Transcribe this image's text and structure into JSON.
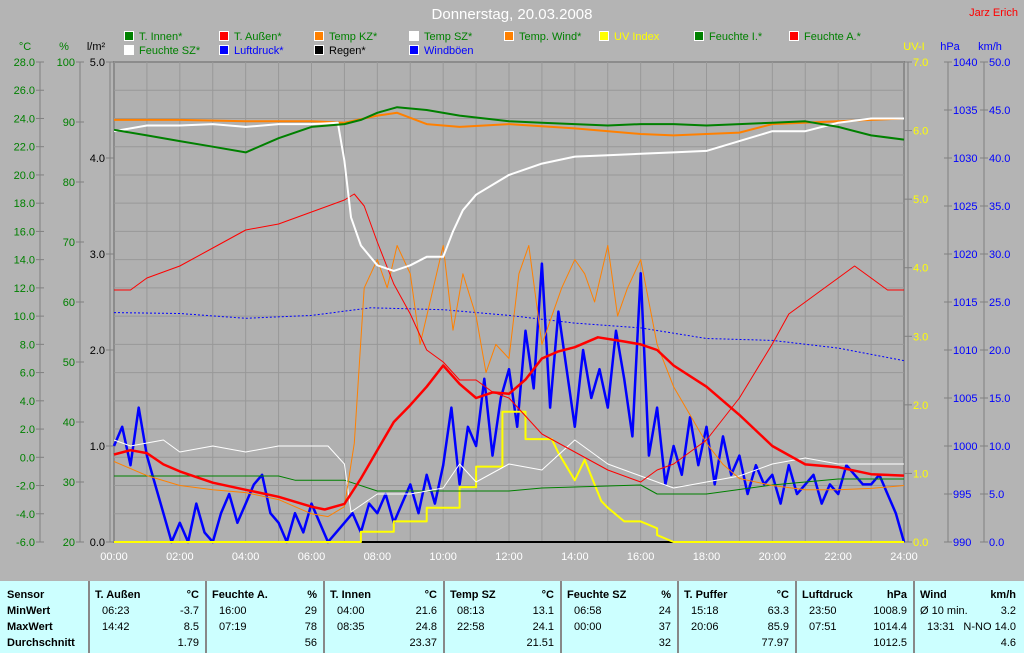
{
  "title": "Donnerstag, 20.03.2008",
  "author": "Jarz Erich",
  "legend": [
    {
      "label": "T. Innen*",
      "swatch": "#008000",
      "text": "#008000"
    },
    {
      "label": "T. Außen*",
      "swatch": "#ff0000",
      "text": "#008000"
    },
    {
      "label": "Temp KZ*",
      "swatch": "#ff8000",
      "text": "#008000"
    },
    {
      "label": "Temp SZ*",
      "swatch": "#ffffff",
      "text": "#008000"
    },
    {
      "label": "Temp. Wind*",
      "swatch": "#ff8000",
      "text": "#008000"
    },
    {
      "label": "UV Index",
      "swatch": "#ffff00",
      "text": "#ffff00"
    },
    {
      "label": "Feuchte I.*",
      "swatch": "#008000",
      "text": "#008000"
    },
    {
      "label": "Feuchte A.*",
      "swatch": "#ff0000",
      "text": "#008000"
    },
    {
      "label": "Feuchte SZ*",
      "swatch": "#ffffff",
      "text": "#008000"
    },
    {
      "label": "Luftdruck*",
      "swatch": "#0000ff",
      "text": "#0000ff"
    },
    {
      "label": "Regen*",
      "swatch": "#000000",
      "text": "#000000"
    },
    {
      "label": "Windböen",
      "swatch": "#0000ff",
      "text": "#0000ff"
    }
  ],
  "chart_data": {
    "type": "line",
    "title": "Donnerstag, 20.03.2008",
    "xlabel": "",
    "x_range": [
      0,
      24
    ],
    "x_ticks": [
      "00:00",
      "02:00",
      "04:00",
      "06:00",
      "08:00",
      "10:00",
      "12:00",
      "14:00",
      "16:00",
      "18:00",
      "20:00",
      "22:00",
      "24:00"
    ],
    "grid": true,
    "axes": {
      "temp": {
        "unit": "°C",
        "range": [
          -6,
          28
        ],
        "step": 2,
        "side": "left",
        "color": "#008000",
        "decimals": 1
      },
      "hum": {
        "unit": "%",
        "range": [
          20,
          100
        ],
        "step": 10,
        "side": "left",
        "color": "#008000",
        "decimals": 0
      },
      "rain": {
        "unit": "l/m²",
        "range": [
          0,
          5
        ],
        "step": 1,
        "side": "left",
        "color": "#000000",
        "decimals": 1
      },
      "uv": {
        "unit": "UV-I",
        "range": [
          0,
          7
        ],
        "step": 1,
        "side": "right",
        "color": "#ffff00",
        "decimals": 1
      },
      "press": {
        "unit": "hPa",
        "range": [
          990,
          1040
        ],
        "step": 5,
        "side": "right",
        "color": "#0000ff",
        "decimals": 0
      },
      "wind": {
        "unit": "km/h",
        "range": [
          0,
          50
        ],
        "step": 5,
        "side": "right",
        "color": "#0000ff",
        "decimals": 1
      }
    },
    "series": [
      {
        "name": "Regen",
        "axis": "rain",
        "color": "#000000",
        "width": 2,
        "x": [
          0,
          24
        ],
        "y": [
          0,
          0
        ]
      },
      {
        "name": "Windböen",
        "axis": "wind",
        "color": "#0000ff",
        "width": 2.5,
        "step": 0.25,
        "y": [
          10,
          12,
          8,
          14,
          9,
          6,
          3,
          0,
          2,
          0,
          4,
          1,
          0,
          3,
          5,
          2,
          4,
          6,
          7,
          3,
          2,
          0,
          3,
          1,
          4,
          2,
          0,
          1,
          2,
          3,
          1,
          4,
          3,
          5,
          2,
          4,
          6,
          3,
          7,
          4,
          8,
          14,
          6,
          12,
          10,
          17,
          9,
          15,
          18,
          12,
          22,
          16,
          29,
          14,
          24,
          18,
          12,
          20,
          15,
          18,
          14,
          22,
          17,
          11,
          28,
          9,
          14,
          6,
          10,
          7,
          13,
          8,
          12,
          6,
          11,
          7,
          9,
          5,
          8,
          6,
          7,
          4,
          8,
          5,
          6,
          7,
          4,
          6,
          5,
          8,
          7,
          6,
          6,
          7,
          5,
          3,
          0
        ]
      },
      {
        "name": "UV Index",
        "axis": "uv",
        "color": "#ffff00",
        "width": 2,
        "x": [
          0,
          7.5,
          7.5,
          8.5,
          8.5,
          9.5,
          9.5,
          10.5,
          10.5,
          11,
          11,
          11.8,
          11.8,
          12.5,
          12.5,
          13.3,
          13.5,
          14,
          14.3,
          14.8,
          15,
          15.5,
          16,
          16.5,
          16.5,
          17,
          24
        ],
        "y": [
          0,
          0,
          0.15,
          0.15,
          0.3,
          0.3,
          0.5,
          0.5,
          0.8,
          0.8,
          1.1,
          1.1,
          1.9,
          1.9,
          1.5,
          1.5,
          1.3,
          0.9,
          1.2,
          0.6,
          0.5,
          0.3,
          0.3,
          0.2,
          0.1,
          0,
          0
        ]
      },
      {
        "name": "Feuchte I.",
        "axis": "hum",
        "color": "#008000",
        "width": 1,
        "x": [
          0,
          5,
          5.5,
          7,
          8,
          10,
          12,
          13,
          16,
          16.5,
          18,
          20,
          22,
          24
        ],
        "y": [
          31,
          31,
          30.3,
          30.3,
          28.5,
          28.5,
          28.5,
          29,
          29.5,
          28,
          28,
          29.5,
          30.5,
          30.5
        ]
      },
      {
        "name": "Feuchte SZ",
        "axis": "hum",
        "color": "#ffffff",
        "width": 1,
        "x": [
          0,
          0.5,
          1.5,
          2,
          3,
          4,
          5,
          6,
          6.5,
          7,
          7.2,
          8,
          9,
          10,
          10.5,
          11,
          12,
          13,
          14,
          15,
          16,
          17,
          18,
          19,
          20,
          21,
          22,
          23,
          24
        ],
        "y": [
          37,
          36,
          37,
          35,
          36,
          35,
          36,
          36,
          36,
          33,
          25,
          28,
          28,
          29,
          33,
          30,
          33,
          32,
          37,
          33,
          31,
          29,
          30,
          31,
          33,
          34,
          33,
          33,
          33
        ]
      },
      {
        "name": "Luftdruck",
        "axis": "press",
        "color": "#0000ff",
        "width": 1,
        "dash": "2,2",
        "x": [
          0,
          2,
          4,
          6,
          7.8,
          10,
          12,
          14,
          16,
          18,
          20,
          22,
          24
        ],
        "y": [
          1013.9,
          1013.8,
          1013.3,
          1013.6,
          1014.4,
          1014.2,
          1013.6,
          1012.8,
          1012.3,
          1011.2,
          1011.0,
          1010.2,
          1008.9
        ]
      },
      {
        "name": "Temp. Wind",
        "axis": "temp",
        "color": "#ff8000",
        "width": 1,
        "x": [
          0,
          1,
          2,
          3,
          4,
          5,
          6,
          6.5,
          7,
          7.3,
          7.6,
          8,
          8.3,
          8.6,
          9,
          9.3,
          9.6,
          10,
          10.3,
          10.6,
          11,
          11.3,
          11.6,
          12,
          12.3,
          12.6,
          13,
          13.3,
          13.6,
          14,
          14.3,
          14.6,
          15,
          15.3,
          15.6,
          16,
          16.5,
          17,
          17.5,
          18,
          18.5,
          19,
          20,
          21,
          22,
          23,
          24
        ],
        "y": [
          -0.3,
          -1.3,
          -2,
          -2.3,
          -2.5,
          -3,
          -4,
          -4.2,
          -3.5,
          1,
          12,
          14,
          12,
          15,
          13,
          8,
          11,
          15,
          9,
          13,
          10,
          6,
          8,
          7,
          13,
          15,
          8,
          10,
          12,
          14,
          13,
          11,
          15,
          10,
          12,
          14,
          8,
          5,
          3,
          1,
          -0.5,
          -1.5,
          -2,
          -2.3,
          -2.3,
          -2.2,
          -2
        ]
      },
      {
        "name": "Feuchte A.",
        "axis": "hum",
        "color": "#ff0000",
        "width": 1,
        "x": [
          0,
          0.5,
          1,
          2,
          3,
          4,
          5,
          6,
          6.5,
          7,
          7.3,
          7.6,
          8,
          8.5,
          9,
          9.5,
          10,
          10.5,
          11,
          11.5,
          12,
          13,
          14,
          15,
          16,
          16.5,
          17,
          18,
          19,
          20,
          20.5,
          21,
          21.5,
          22,
          22.5,
          23,
          23.5,
          24
        ],
        "y": [
          62,
          62,
          64,
          66,
          69,
          72,
          73,
          75,
          76,
          77,
          78,
          76,
          70,
          63,
          58,
          52,
          50,
          47,
          47,
          45,
          44,
          38,
          35,
          32,
          30,
          32,
          33,
          37,
          44,
          53,
          58,
          60,
          62,
          64,
          66,
          64,
          62,
          62
        ]
      },
      {
        "name": "Temp KZ",
        "axis": "temp",
        "color": "#ff8000",
        "width": 2,
        "x": [
          0,
          2,
          4,
          6,
          7,
          8,
          8.6,
          9.5,
          10.5,
          12,
          14,
          16,
          17,
          19,
          20,
          22,
          24
        ],
        "y": [
          23.9,
          23.9,
          23.8,
          23.8,
          23.7,
          24.2,
          24.4,
          23.6,
          23.4,
          23.6,
          23.3,
          22.9,
          22.8,
          23.0,
          23.6,
          23.8,
          24.0
        ]
      },
      {
        "name": "Temp SZ",
        "axis": "temp",
        "color": "#ffffff",
        "width": 2,
        "x": [
          0,
          0.5,
          1,
          2,
          3,
          4,
          5,
          6,
          6.8,
          7,
          7.2,
          7.5,
          8,
          8.5,
          9,
          9.5,
          10,
          10.3,
          10.6,
          11,
          12,
          13,
          14,
          15,
          16,
          17,
          18,
          19,
          20,
          21,
          22,
          23,
          24
        ],
        "y": [
          23.1,
          23.3,
          23.5,
          23.5,
          23.6,
          23.4,
          23.6,
          23.6,
          23.7,
          21,
          17,
          15,
          13.6,
          13.2,
          13.6,
          14.2,
          14.2,
          16,
          17.5,
          18.6,
          20,
          20.8,
          21.3,
          21.4,
          21.5,
          21.6,
          21.7,
          22.4,
          23.1,
          23.1,
          23.7,
          24.0,
          24.0
        ]
      },
      {
        "name": "T. Innen",
        "axis": "temp",
        "color": "#008000",
        "width": 2,
        "x": [
          0,
          1,
          2,
          3,
          4,
          5,
          6,
          7,
          7.5,
          8,
          8.6,
          9.5,
          10.5,
          12,
          13,
          14,
          15,
          16,
          17,
          18,
          19,
          20,
          21,
          22,
          23,
          24
        ],
        "y": [
          23.2,
          22.8,
          22.4,
          22,
          21.6,
          22.6,
          23.4,
          23.6,
          23.9,
          24.4,
          24.8,
          24.6,
          24.2,
          23.8,
          23.7,
          23.6,
          23.5,
          23.6,
          23.6,
          23.5,
          23.6,
          23.7,
          23.8,
          23.4,
          22.8,
          22.5
        ]
      },
      {
        "name": "T. Außen",
        "axis": "temp",
        "color": "#ff0000",
        "width": 2.5,
        "x": [
          0,
          0.5,
          1,
          1.5,
          2,
          3,
          4,
          5,
          6,
          6.4,
          7,
          7.5,
          8,
          8.5,
          9,
          9.5,
          10,
          10.5,
          11,
          11.5,
          12,
          12.5,
          13,
          13.5,
          14,
          14.7,
          15.5,
          16,
          16.5,
          17,
          18,
          19,
          20,
          21,
          22,
          23,
          24
        ],
        "y": [
          0.2,
          0.5,
          0.3,
          -0.5,
          -1,
          -1.8,
          -2.3,
          -2.8,
          -3.5,
          -3.7,
          -3.3,
          -1.5,
          0.5,
          2.5,
          3.7,
          5,
          6.5,
          5.2,
          4.2,
          4.6,
          4.5,
          5.5,
          7,
          7.5,
          7.8,
          8.5,
          8.2,
          8.0,
          7.6,
          6.5,
          5,
          3,
          0.8,
          -0.5,
          -0.7,
          -1.2,
          -1.3
        ]
      }
    ]
  },
  "table": {
    "headers": [
      {
        "name": "Sensor",
        "unit": ""
      },
      {
        "name": "T. Außen",
        "unit": "°C"
      },
      {
        "name": "Feuchte A.",
        "unit": "%"
      },
      {
        "name": "T. Innen",
        "unit": "°C"
      },
      {
        "name": "Temp SZ",
        "unit": "°C"
      },
      {
        "name": "Feuchte SZ",
        "unit": "%"
      },
      {
        "name": "T. Puffer",
        "unit": "°C"
      },
      {
        "name": "Luftdruck",
        "unit": "hPa"
      },
      {
        "name": "Wind",
        "unit": "km/h"
      }
    ],
    "rows": [
      {
        "label": "MinWert",
        "cells": [
          [
            "06:23",
            "-3.7"
          ],
          [
            "16:00",
            "29"
          ],
          [
            "04:00",
            "21.6"
          ],
          [
            "08:13",
            "13.1"
          ],
          [
            "06:58",
            "24"
          ],
          [
            "15:18",
            "63.3"
          ],
          [
            "23:50",
            "1008.9"
          ],
          [
            "Ø 10 min.",
            "3.2"
          ]
        ]
      },
      {
        "label": "MaxWert",
        "cells": [
          [
            "14:42",
            "8.5"
          ],
          [
            "07:19",
            "78"
          ],
          [
            "08:35",
            "24.8"
          ],
          [
            "22:58",
            "24.1"
          ],
          [
            "00:00",
            "37"
          ],
          [
            "20:06",
            "85.9"
          ],
          [
            "07:51",
            "1014.4"
          ],
          [
            "13:31",
            "N-NO 14.0"
          ]
        ]
      },
      {
        "label": "Durchschnitt",
        "cells": [
          [
            "",
            "1.79"
          ],
          [
            "",
            "56"
          ],
          [
            "",
            "23.37"
          ],
          [
            "",
            "21.51"
          ],
          [
            "",
            "32"
          ],
          [
            "",
            "77.97"
          ],
          [
            "",
            "1012.5"
          ],
          [
            "",
            "4.6"
          ]
        ]
      }
    ]
  }
}
